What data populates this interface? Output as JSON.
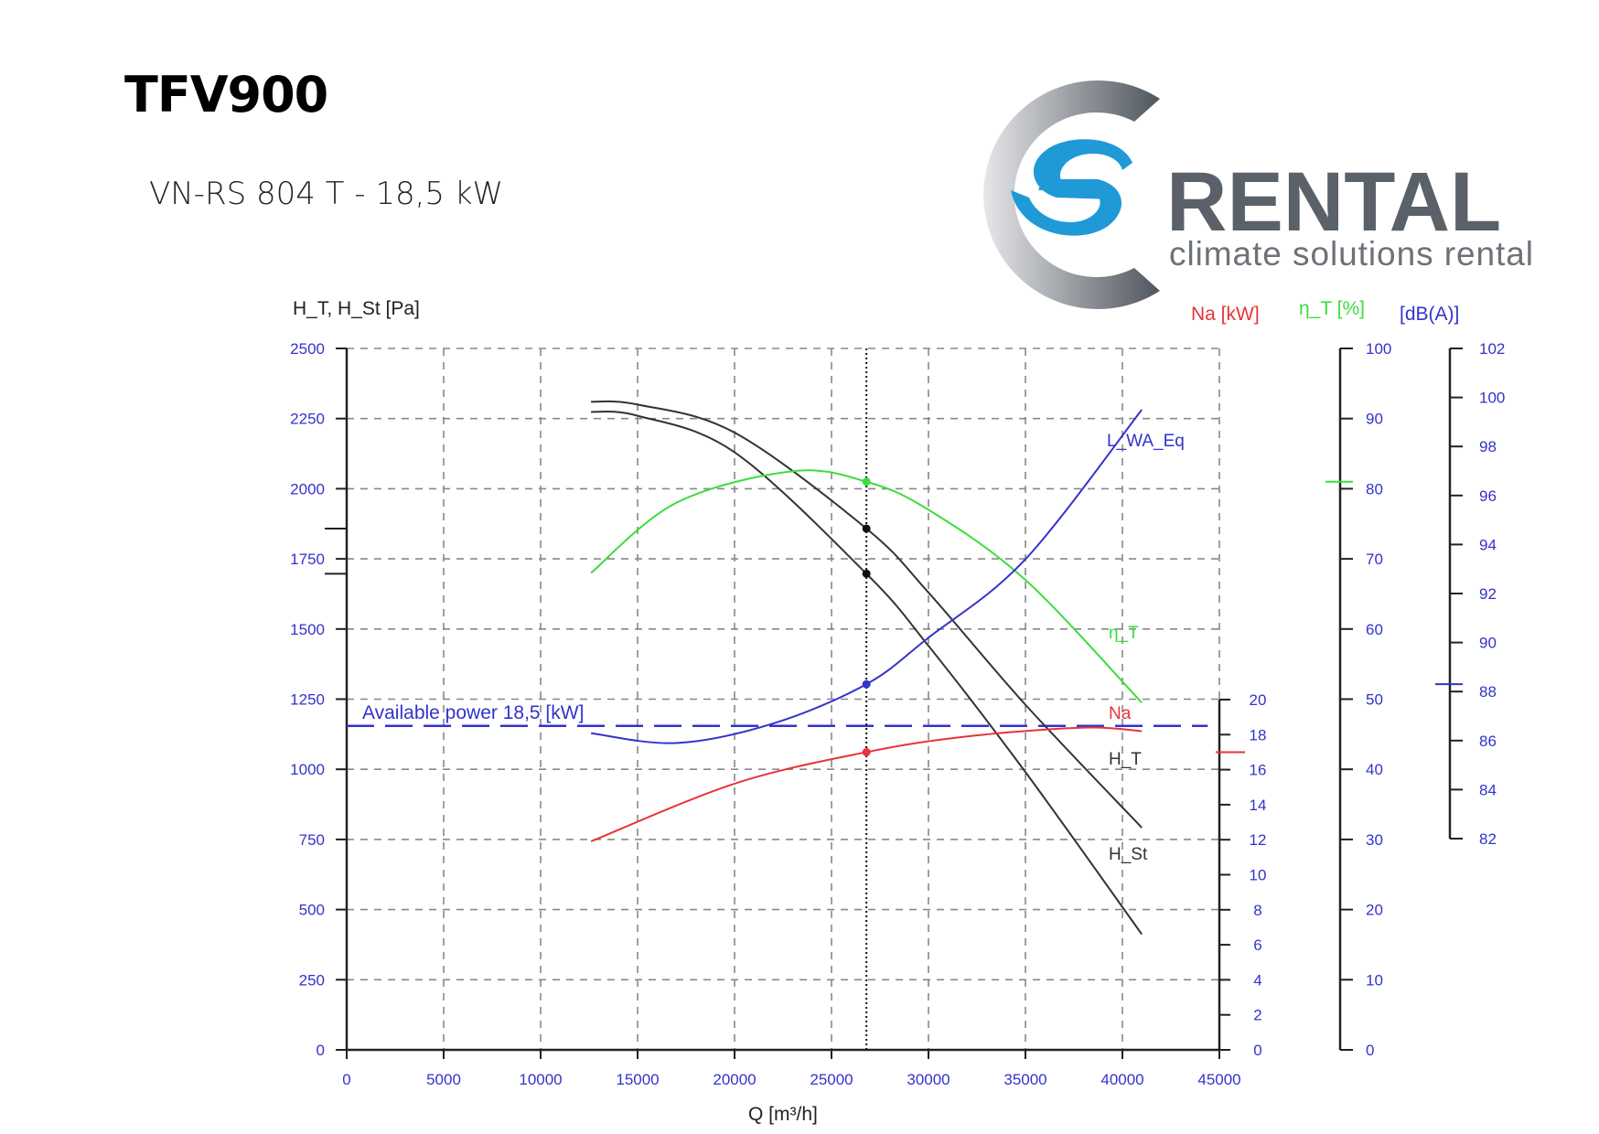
{
  "header": {
    "title": "TFV900",
    "subtitle": "VN-RS 804 T - 18,5 kW"
  },
  "logo": {
    "brand": "RENTAL",
    "tagline": "climate solutions rental",
    "colors": {
      "ring": "#5a6168",
      "s_mark": "#1f9ad6",
      "text": "#5a6168"
    }
  },
  "chart_data": {
    "type": "line",
    "xlabel": "Q [m³/h]",
    "ylabel": "H_T, H_St [Pa]",
    "xlim": [
      0,
      45000
    ],
    "xticks": [
      0,
      5000,
      10000,
      15000,
      20000,
      25000,
      30000,
      35000,
      40000,
      45000
    ],
    "ylim": [
      0,
      2500
    ],
    "yticks": [
      0,
      250,
      500,
      750,
      1000,
      1250,
      1500,
      1750,
      2000,
      2250,
      2500
    ],
    "grid": true,
    "secondary_axes": [
      {
        "id": "na",
        "label": "Na [kW]",
        "color": "#e8333a",
        "lim": [
          0,
          20
        ],
        "ticks": [
          0,
          2,
          4,
          6,
          8,
          10,
          12,
          14,
          16,
          18,
          20
        ]
      },
      {
        "id": "eta",
        "label": "η_T [%]",
        "color": "#3ddc3d",
        "lim": [
          0,
          100
        ],
        "ticks": [
          0,
          10,
          20,
          30,
          40,
          50,
          60,
          70,
          80,
          90,
          100
        ]
      },
      {
        "id": "db",
        "label": "[dB(A)]",
        "color": "#3333cc",
        "lim": [
          82,
          102
        ],
        "ticks": [
          82,
          84,
          86,
          88,
          90,
          92,
          94,
          96,
          98,
          100,
          102
        ]
      }
    ],
    "series": [
      {
        "name": "H_T",
        "axis": "pa",
        "color": "#333333",
        "x": [
          12600,
          15000,
          20000,
          26800,
          30000,
          35000,
          41000
        ],
        "y": [
          2310,
          2300,
          2200,
          1858,
          1630,
          1230,
          792
        ]
      },
      {
        "name": "H_St",
        "axis": "pa",
        "color": "#333333",
        "x": [
          12600,
          15000,
          20000,
          26800,
          30000,
          35000,
          41000
        ],
        "y": [
          2274,
          2260,
          2130,
          1697,
          1440,
          990,
          412
        ]
      },
      {
        "name": "η_T",
        "axis": "eta",
        "color": "#3ddc3d",
        "x": [
          12600,
          17000,
          23000,
          26800,
          30000,
          35000,
          41000
        ],
        "y": [
          68,
          78,
          82.5,
          81,
          77,
          67,
          49.5
        ]
      },
      {
        "name": "Na",
        "axis": "na",
        "color": "#e8333a",
        "x": [
          12600,
          20000,
          26800,
          32000,
          38000,
          41000
        ],
        "y": [
          11.9,
          15.2,
          17.0,
          17.9,
          18.4,
          18.2
        ]
      },
      {
        "name": "L_WA_Eq",
        "axis": "db",
        "color": "#3333cc",
        "x": [
          12600,
          17000,
          22000,
          26800,
          30000,
          35000,
          41000
        ],
        "y": [
          86.3,
          85.9,
          86.7,
          88.3,
          90.2,
          93.4,
          99.5
        ]
      }
    ],
    "operating_point": {
      "q": 26800,
      "h_t": 1858,
      "h_st": 1697,
      "eta": 81,
      "na": 17.0,
      "db": 88.3
    },
    "available_power": {
      "label": "Available power 18,5 [kW]",
      "value_kw": 18.5,
      "color": "#3333cc"
    }
  }
}
